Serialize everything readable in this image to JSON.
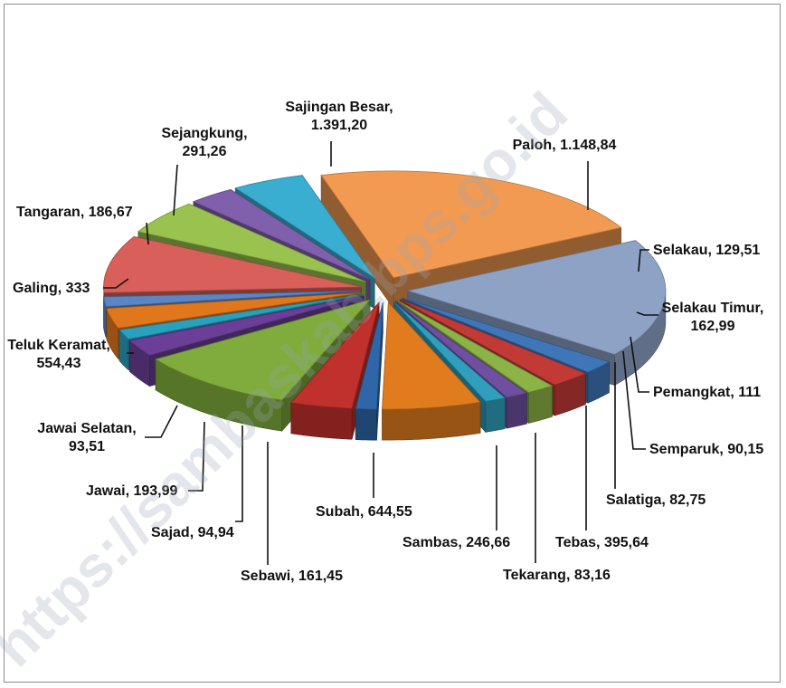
{
  "watermark": "https://sambaskab.bps.go.id",
  "chart_data": {
    "type": "pie",
    "style": "3d-exploded",
    "unit": "km²",
    "slices": [
      {
        "name": "Paloh",
        "value": 1148.84,
        "label": "Paloh, 1.148,84",
        "color": "#8ea2c6"
      },
      {
        "name": "Selakau",
        "value": 129.51,
        "label": "Selakau, 129,51",
        "color": "#3f76b8"
      },
      {
        "name": "Selakau Timur",
        "value": 162.99,
        "label": "Selakau Timur, 162,99",
        "color": "#c23a36"
      },
      {
        "name": "Pemangkat",
        "value": 111,
        "label": "Pemangkat, 111",
        "color": "#8cb345"
      },
      {
        "name": "Semparuk",
        "value": 90.15,
        "label": "Semparuk, 90,15",
        "color": "#6f4f9f"
      },
      {
        "name": "Salatiga",
        "value": 82.75,
        "label": "Salatiga, 82,75",
        "color": "#2f9fbd"
      },
      {
        "name": "Tebas",
        "value": 395.64,
        "label": "Tebas, 395,64",
        "color": "#e07b1e"
      },
      {
        "name": "Tekarang",
        "value": 83.16,
        "label": "Tekarang, 83,16",
        "color": "#2e66a8"
      },
      {
        "name": "Sambas",
        "value": 246.66,
        "label": "Sambas, 246,66",
        "color": "#c0302c"
      },
      {
        "name": "Subah",
        "value": 644.55,
        "label": "Subah, 644,55",
        "color": "#7fac3c"
      },
      {
        "name": "Sebawi",
        "value": 161.45,
        "label": "Sebawi, 161,45",
        "color": "#6b3f98"
      },
      {
        "name": "Sajad",
        "value": 94.94,
        "label": "Sajad, 94,94",
        "color": "#2aa0bf"
      },
      {
        "name": "Jawai",
        "value": 193.99,
        "label": "Jawai, 193,99",
        "color": "#e0771c"
      },
      {
        "name": "Jawai Selatan",
        "value": 93.51,
        "label": "Jawai Selatan, 93,51",
        "color": "#5a86c5"
      },
      {
        "name": "Teluk Keramat",
        "value": 554.43,
        "label": "Teluk Keramat, 554,43",
        "color": "#d9605a"
      },
      {
        "name": "Galing",
        "value": 333,
        "label": "Galing, 333",
        "color": "#9ac24f"
      },
      {
        "name": "Tangaran",
        "value": 186.67,
        "label": "Tangaran, 186,67",
        "color": "#8060ad"
      },
      {
        "name": "Sejangkung",
        "value": 291.26,
        "label": "Sejangkung, 291,26",
        "color": "#3aaed0"
      },
      {
        "name": "Sajingan Besar",
        "value": 1391.2,
        "label": "Sajingan Besar, 1.391,20",
        "color": "#f39a52"
      }
    ],
    "label_lines": [
      [
        "Paloh, 1.148,84"
      ],
      [
        "Selakau, 129,51"
      ],
      [
        "Selakau Timur,",
        "162,99"
      ],
      [
        "Pemangkat, 111"
      ],
      [
        "Semparuk, 90,15"
      ],
      [
        "Salatiga, 82,75"
      ],
      [
        "Tebas, 395,64"
      ],
      [
        "Tekarang, 83,16"
      ],
      [
        "Sambas, 246,66"
      ],
      [
        "Subah, 644,55"
      ],
      [
        "Sebawi, 161,45"
      ],
      [
        "Sajad, 94,94"
      ],
      [
        "Jawai, 193,99"
      ],
      [
        "Jawai Selatan,",
        "93,51"
      ],
      [
        "Teluk Keramat,",
        "554,43"
      ],
      [
        "Galing, 333"
      ],
      [
        "Tangaran, 186,67"
      ],
      [
        "Sejangkung,",
        "291,26"
      ],
      [
        "Sajingan Besar,",
        "1.391,20"
      ]
    ],
    "legend": "none",
    "grid": false
  }
}
